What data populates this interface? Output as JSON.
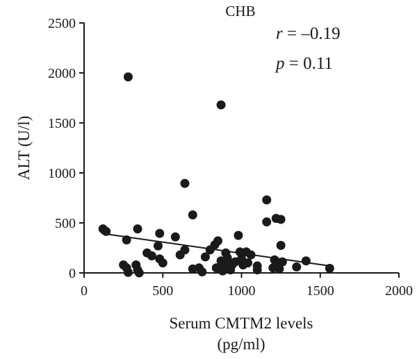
{
  "chart_data": {
    "type": "scatter",
    "title": "CHB",
    "xlabel_line1": "Serum CMTM2 levels",
    "xlabel_line2": "(pg/ml)",
    "ylabel": "ALT (U/l)",
    "xlim": [
      0,
      2000
    ],
    "ylim": [
      0,
      2500
    ],
    "xticks": [
      0,
      500,
      1000,
      1500,
      2000
    ],
    "yticks": [
      0,
      500,
      1000,
      1500,
      2000,
      2500
    ],
    "grid": false,
    "annotations": {
      "r_symbol": "r",
      "r_value": " = –0.19",
      "p_symbol": "p",
      "p_value": " = 0.11"
    },
    "trendline": {
      "x": [
        110,
        1560
      ],
      "y": [
        395,
        70
      ]
    },
    "points": [
      {
        "x": 120,
        "y": 440
      },
      {
        "x": 140,
        "y": 415
      },
      {
        "x": 270,
        "y": 330
      },
      {
        "x": 280,
        "y": 1960
      },
      {
        "x": 340,
        "y": 440
      },
      {
        "x": 250,
        "y": 80
      },
      {
        "x": 270,
        "y": 50
      },
      {
        "x": 280,
        "y": 5
      },
      {
        "x": 330,
        "y": 80
      },
      {
        "x": 340,
        "y": 30
      },
      {
        "x": 350,
        "y": 0
      },
      {
        "x": 400,
        "y": 200
      },
      {
        "x": 430,
        "y": 170
      },
      {
        "x": 470,
        "y": 270
      },
      {
        "x": 480,
        "y": 140
      },
      {
        "x": 480,
        "y": 395
      },
      {
        "x": 500,
        "y": 100
      },
      {
        "x": 580,
        "y": 360
      },
      {
        "x": 610,
        "y": 180
      },
      {
        "x": 640,
        "y": 230
      },
      {
        "x": 640,
        "y": 895
      },
      {
        "x": 690,
        "y": 580
      },
      {
        "x": 690,
        "y": 40
      },
      {
        "x": 730,
        "y": 50
      },
      {
        "x": 750,
        "y": 10
      },
      {
        "x": 770,
        "y": 160
      },
      {
        "x": 800,
        "y": 230
      },
      {
        "x": 830,
        "y": 280
      },
      {
        "x": 850,
        "y": 320
      },
      {
        "x": 840,
        "y": 50
      },
      {
        "x": 870,
        "y": 1680
      },
      {
        "x": 870,
        "y": 120
      },
      {
        "x": 880,
        "y": 20
      },
      {
        "x": 890,
        "y": 60
      },
      {
        "x": 900,
        "y": 200
      },
      {
        "x": 910,
        "y": 150
      },
      {
        "x": 920,
        "y": 100
      },
      {
        "x": 930,
        "y": 30
      },
      {
        "x": 940,
        "y": 80
      },
      {
        "x": 960,
        "y": 110
      },
      {
        "x": 980,
        "y": 375
      },
      {
        "x": 990,
        "y": 210
      },
      {
        "x": 1000,
        "y": 140
      },
      {
        "x": 1010,
        "y": 80
      },
      {
        "x": 1030,
        "y": 210
      },
      {
        "x": 1040,
        "y": 100
      },
      {
        "x": 1060,
        "y": 180
      },
      {
        "x": 1100,
        "y": 70
      },
      {
        "x": 1100,
        "y": 30
      },
      {
        "x": 1160,
        "y": 730
      },
      {
        "x": 1160,
        "y": 510
      },
      {
        "x": 1200,
        "y": 50
      },
      {
        "x": 1210,
        "y": 130
      },
      {
        "x": 1220,
        "y": 545
      },
      {
        "x": 1230,
        "y": 90
      },
      {
        "x": 1240,
        "y": 40
      },
      {
        "x": 1250,
        "y": 275
      },
      {
        "x": 1250,
        "y": 535
      },
      {
        "x": 1260,
        "y": 110
      },
      {
        "x": 1350,
        "y": 60
      },
      {
        "x": 1410,
        "y": 120
      },
      {
        "x": 1560,
        "y": 45
      }
    ]
  }
}
